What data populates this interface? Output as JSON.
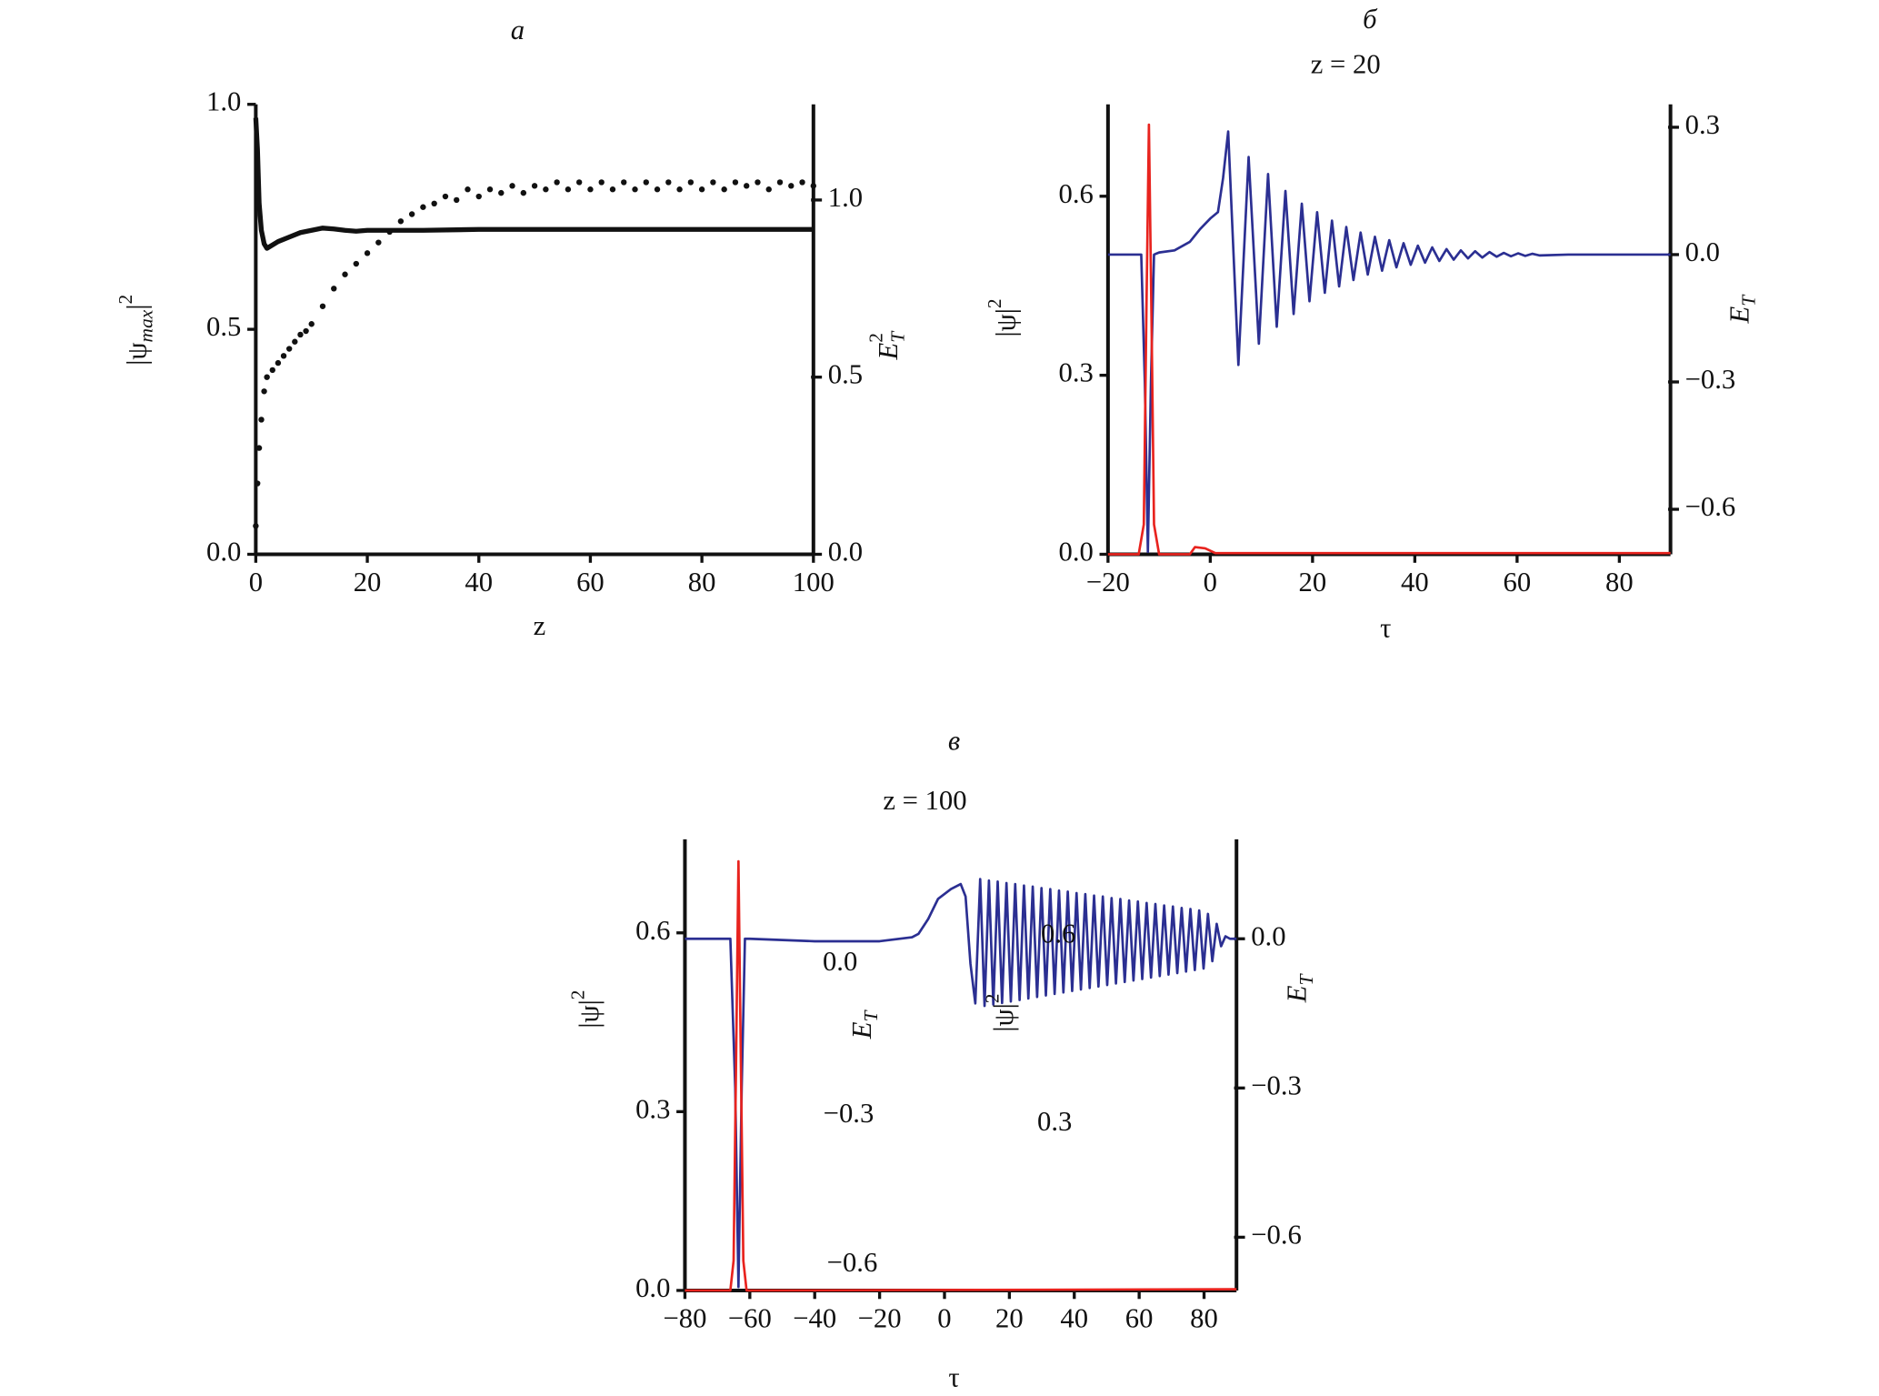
{
  "chart_data": [
    {
      "type": "line",
      "panel_label": "а",
      "xlabel": "z",
      "ylabel": [
        "|ψ",
        "max",
        "|",
        "2"
      ],
      "y2label": [
        "E",
        "T",
        "2"
      ],
      "xlim": [
        0,
        100
      ],
      "xticks": [
        0,
        20,
        40,
        60,
        80,
        100
      ],
      "ylim": [
        0,
        1
      ],
      "yticks": [
        {
          "value": 0,
          "label": "0.0"
        },
        {
          "value": 0.5,
          "label": "0.5"
        },
        {
          "value": 1,
          "label": "1.0"
        }
      ],
      "y2lim": [
        0,
        1.27
      ],
      "y2ticks": [
        {
          "value": 0,
          "label": "0.0"
        },
        {
          "value": 0.5,
          "label": "0.5"
        },
        {
          "value": 1,
          "label": "1.0"
        }
      ],
      "series": [
        {
          "color": "#111111",
          "marker": "line",
          "axis": "y",
          "x": [
            0,
            0.3,
            0.6,
            1,
            1.5,
            2,
            4,
            6,
            8,
            10,
            12,
            14,
            16,
            18,
            20,
            30,
            40,
            60,
            80,
            100
          ],
          "values": [
            0.97,
            0.9,
            0.78,
            0.72,
            0.69,
            0.68,
            0.695,
            0.705,
            0.715,
            0.72,
            0.725,
            0.723,
            0.72,
            0.718,
            0.72,
            0.72,
            0.722,
            0.722,
            0.722,
            0.722
          ]
        },
        {
          "color": "#111111",
          "marker": "dot",
          "axis": "y2",
          "x": [
            0,
            0.3,
            0.6,
            1,
            1.5,
            2,
            3,
            4,
            5,
            6,
            7,
            8,
            9,
            10,
            12,
            14,
            16,
            18,
            20,
            22,
            24,
            26,
            28,
            30,
            32,
            34,
            36,
            38,
            40,
            42,
            44,
            46,
            48,
            50,
            52,
            54,
            56,
            58,
            60,
            62,
            64,
            66,
            68,
            70,
            72,
            74,
            76,
            78,
            80,
            82,
            84,
            86,
            88,
            90,
            92,
            94,
            96,
            98,
            100
          ],
          "values": [
            0.08,
            0.2,
            0.3,
            0.38,
            0.46,
            0.5,
            0.52,
            0.54,
            0.56,
            0.58,
            0.6,
            0.62,
            0.63,
            0.65,
            0.7,
            0.75,
            0.79,
            0.82,
            0.85,
            0.88,
            0.91,
            0.94,
            0.96,
            0.98,
            0.99,
            1.01,
            1.0,
            1.03,
            1.01,
            1.03,
            1.02,
            1.04,
            1.02,
            1.04,
            1.03,
            1.05,
            1.03,
            1.05,
            1.03,
            1.05,
            1.03,
            1.05,
            1.03,
            1.05,
            1.03,
            1.05,
            1.03,
            1.05,
            1.03,
            1.05,
            1.03,
            1.05,
            1.04,
            1.05,
            1.03,
            1.05,
            1.04,
            1.05,
            1.04
          ]
        }
      ]
    },
    {
      "type": "line",
      "panel_label": "б",
      "title": "z = 20",
      "xlabel": "τ",
      "ylabel": [
        "|ψ|",
        "2"
      ],
      "y2label": [
        "E",
        "T"
      ],
      "xlim": [
        -20,
        90
      ],
      "xticks": [
        {
          "value": -20,
          "label": "−20"
        },
        0,
        20,
        40,
        60,
        80
      ],
      "ylim": [
        0,
        0.754
      ],
      "yticks": [
        {
          "value": 0,
          "label": "0.0"
        },
        0.3,
        0.6
      ],
      "y2lim": [
        -0.706,
        0.354
      ],
      "y2ticks": [
        {
          "value": -0.6,
          "label": "−0.6"
        },
        {
          "value": -0.3,
          "label": "−0.3"
        },
        {
          "value": 0,
          "label": "0.0"
        },
        0.3
      ],
      "series": [
        {
          "color": "#2b2f92",
          "marker": "line",
          "axis": "y2",
          "x": [
            -20,
            -13.5,
            -12.8,
            -12.2,
            -11.6,
            -11,
            -10,
            -7,
            -4,
            -2,
            0,
            1.5,
            2.5,
            3.5,
            5.5,
            7.5,
            9.5,
            11.3,
            13,
            14.7,
            16.3,
            17.9,
            19.4,
            20.9,
            22.4,
            23.8,
            25.2,
            26.6,
            28,
            29.4,
            30.8,
            32.2,
            33.6,
            35,
            36.4,
            37.8,
            39.2,
            40.6,
            42,
            43.4,
            44.8,
            46.2,
            47.6,
            49,
            50.4,
            51.8,
            53.2,
            54.6,
            56,
            57.4,
            58.8,
            60.2,
            61.6,
            63,
            64.4,
            70,
            90
          ],
          "values": [
            0,
            0,
            -0.3,
            -0.7,
            -0.3,
            0,
            0.005,
            0.01,
            0.03,
            0.06,
            0.085,
            0.1,
            0.18,
            0.29,
            -0.26,
            0.23,
            -0.21,
            0.19,
            -0.17,
            0.15,
            -0.14,
            0.12,
            -0.11,
            0.1,
            -0.09,
            0.08,
            -0.075,
            0.065,
            -0.06,
            0.052,
            -0.047,
            0.042,
            -0.038,
            0.034,
            -0.03,
            0.027,
            -0.024,
            0.021,
            -0.019,
            0.017,
            -0.015,
            0.013,
            -0.012,
            0.01,
            -0.009,
            0.008,
            -0.007,
            0.006,
            -0.005,
            0.004,
            -0.004,
            0.003,
            -0.003,
            0.002,
            -0.002,
            0,
            0
          ]
        },
        {
          "color": "#e8231e",
          "marker": "line",
          "axis": "y",
          "x": [
            -20,
            -14,
            -13,
            -12.5,
            -12,
            -11.5,
            -11,
            -10,
            -4,
            -3,
            -1,
            0,
            1,
            90
          ],
          "values": [
            0,
            0,
            0.05,
            0.4,
            0.72,
            0.4,
            0.05,
            0,
            0,
            0.012,
            0.01,
            0.006,
            0.002,
            0.002
          ]
        }
      ]
    },
    {
      "type": "line",
      "panel_label": "в",
      "title": "z = 100",
      "xlabel": "τ",
      "ylabel": [
        "|ψ|",
        "2"
      ],
      "y2label": [
        "E",
        "T"
      ],
      "xlim": [
        -80,
        90
      ],
      "xticks": [
        {
          "value": -80,
          "label": "−80"
        },
        {
          "value": -60,
          "label": "−60"
        },
        {
          "value": -40,
          "label": "−40"
        },
        {
          "value": -20,
          "label": "−20"
        },
        0,
        20,
        40,
        60,
        80
      ],
      "ylim": [
        0,
        0.757
      ],
      "yticks": [
        {
          "value": 0,
          "label": "0.0"
        },
        0.3,
        0.6
      ],
      "y2lim": [
        -0.707,
        0.2
      ],
      "y2ticks": [
        {
          "value": -0.6,
          "label": "−0.6"
        },
        {
          "value": -0.3,
          "label": "−0.3"
        },
        {
          "value": 0,
          "label": "0.0"
        }
      ],
      "annotations": [
        [
          "0.0"
        ],
        [
          "E",
          "T"
        ],
        [
          "−0.3"
        ],
        [
          "−0.6"
        ],
        [
          "0.6"
        ],
        [
          "|ψ|",
          "2"
        ],
        [
          "0.3"
        ]
      ],
      "series": [
        {
          "color": "#2b2f92",
          "marker": "line",
          "axis": "y2",
          "x": [
            -80,
            -66,
            -64.5,
            -63.5,
            -62.5,
            -61.5,
            -60,
            -40,
            -20,
            -10,
            -8,
            -5,
            -2,
            2,
            5,
            6.5,
            8,
            9.5,
            11,
            12.35,
            13.7,
            15.05,
            16.4,
            17.75,
            19.1,
            20.45,
            21.8,
            23.15,
            24.5,
            25.85,
            27.2,
            28.55,
            29.9,
            31.25,
            32.6,
            33.95,
            35.3,
            36.65,
            38,
            39.35,
            40.7,
            42.05,
            43.4,
            44.75,
            46.1,
            47.45,
            48.8,
            50.15,
            51.5,
            52.85,
            54.2,
            55.55,
            56.9,
            58.25,
            59.6,
            60.95,
            62.3,
            63.65,
            65,
            66.35,
            67.7,
            69.05,
            70.4,
            71.75,
            73.1,
            74.45,
            75.8,
            77.15,
            78.5,
            79.85,
            81.2,
            82.55,
            83.9,
            85.25,
            86.6,
            88,
            90
          ],
          "values": [
            0,
            0,
            -0.3,
            -0.7,
            -0.3,
            0,
            0,
            -0.005,
            -0.005,
            0.003,
            0.01,
            0.04,
            0.08,
            0.1,
            0.11,
            0.085,
            -0.05,
            -0.13,
            0.12,
            -0.135,
            0.117,
            -0.132,
            0.115,
            -0.129,
            0.112,
            -0.126,
            0.11,
            -0.123,
            0.107,
            -0.12,
            0.105,
            -0.117,
            0.102,
            -0.114,
            0.1,
            -0.111,
            0.097,
            -0.108,
            0.095,
            -0.105,
            0.092,
            -0.102,
            0.09,
            -0.099,
            0.087,
            -0.096,
            0.085,
            -0.093,
            0.082,
            -0.09,
            0.08,
            -0.087,
            0.077,
            -0.084,
            0.075,
            -0.081,
            0.072,
            -0.078,
            0.07,
            -0.075,
            0.067,
            -0.072,
            0.065,
            -0.069,
            0.062,
            -0.066,
            0.06,
            -0.063,
            0.057,
            -0.06,
            0.05,
            -0.045,
            0.03,
            -0.015,
            0.005,
            0,
            0
          ]
        },
        {
          "color": "#e8231e",
          "marker": "line",
          "axis": "y",
          "x": [
            -80,
            -66,
            -65,
            -64.2,
            -63.5,
            -62.8,
            -62,
            -61,
            90
          ],
          "values": [
            0,
            0,
            0.05,
            0.4,
            0.72,
            0.4,
            0.05,
            0,
            0.002
          ]
        }
      ]
    }
  ]
}
